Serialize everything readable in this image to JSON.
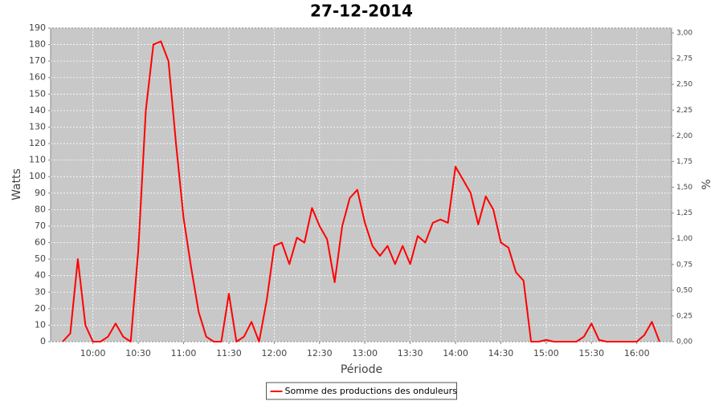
{
  "chart_data": {
    "type": "line",
    "title": "27-12-2014",
    "x_label": "Période",
    "y_label": "Watts",
    "y2_label": "%",
    "x": [
      "09:40",
      "09:45",
      "09:50",
      "09:55",
      "10:00",
      "10:05",
      "10:10",
      "10:15",
      "10:20",
      "10:25",
      "10:30",
      "10:35",
      "10:40",
      "10:45",
      "10:50",
      "10:55",
      "11:00",
      "11:05",
      "11:10",
      "11:15",
      "11:20",
      "11:25",
      "11:30",
      "11:35",
      "11:40",
      "11:45",
      "11:50",
      "11:55",
      "12:00",
      "12:05",
      "12:10",
      "12:15",
      "12:20",
      "12:25",
      "12:30",
      "12:35",
      "12:40",
      "12:45",
      "12:50",
      "12:55",
      "13:00",
      "13:05",
      "13:10",
      "13:15",
      "13:20",
      "13:25",
      "13:30",
      "13:35",
      "13:40",
      "13:45",
      "13:50",
      "13:55",
      "14:00",
      "14:05",
      "14:10",
      "14:15",
      "14:20",
      "14:25",
      "14:30",
      "14:35",
      "14:40",
      "14:45",
      "14:50",
      "14:55",
      "15:00",
      "15:05",
      "15:10",
      "15:15",
      "15:20",
      "15:25",
      "15:30",
      "15:35",
      "15:40",
      "15:45",
      "15:50",
      "15:55",
      "16:00",
      "16:05",
      "16:10",
      "16:15"
    ],
    "series": [
      {
        "name": "Somme des productions des onduleurs",
        "color": "#ff0000",
        "values": [
          0,
          5,
          50,
          10,
          0,
          0,
          3,
          11,
          3,
          0,
          55,
          140,
          180,
          182,
          170,
          120,
          75,
          45,
          18,
          3,
          0,
          0,
          29,
          0,
          3,
          12,
          0,
          25,
          58,
          60,
          47,
          63,
          60,
          81,
          70,
          62,
          36,
          70,
          87,
          92,
          72,
          58,
          52,
          58,
          47,
          58,
          47,
          64,
          60,
          72,
          74,
          72,
          106,
          98,
          90,
          71,
          88,
          80,
          60,
          57,
          42,
          37,
          0,
          0,
          1,
          0,
          0,
          0,
          0,
          3,
          11,
          1,
          0,
          0,
          0,
          0,
          0,
          4,
          12,
          0
        ]
      }
    ],
    "xlim": [
      "09:32",
      "16:23"
    ],
    "xticks": [
      "10:00",
      "10:30",
      "11:00",
      "11:30",
      "12:00",
      "12:30",
      "13:00",
      "13:30",
      "14:00",
      "14:30",
      "15:00",
      "15:30",
      "16:00"
    ],
    "ylim": [
      0,
      190
    ],
    "yticks": [
      0,
      10,
      20,
      30,
      40,
      50,
      60,
      70,
      80,
      90,
      100,
      110,
      120,
      130,
      140,
      150,
      160,
      170,
      180,
      190
    ],
    "y2lim": [
      0,
      3.047
    ],
    "y2ticks": [
      {
        "value": 0,
        "label": "0,00"
      },
      {
        "value": 0.25,
        "label": "0,25"
      },
      {
        "value": 0.5,
        "label": "0,50"
      },
      {
        "value": 0.75,
        "label": "0,75"
      },
      {
        "value": 1,
        "label": "1,00"
      },
      {
        "value": 1.25,
        "label": "1,25"
      },
      {
        "value": 1.5,
        "label": "1,50"
      },
      {
        "value": 1.75,
        "label": "1,75"
      },
      {
        "value": 2,
        "label": "2,00"
      },
      {
        "value": 2.25,
        "label": "2,25"
      },
      {
        "value": 2.5,
        "label": "2,50"
      },
      {
        "value": 2.75,
        "label": "2,75"
      },
      {
        "value": 3,
        "label": "3,00"
      }
    ],
    "grid": true,
    "plot_background": "#c8c8c8",
    "legend": "bottom"
  }
}
